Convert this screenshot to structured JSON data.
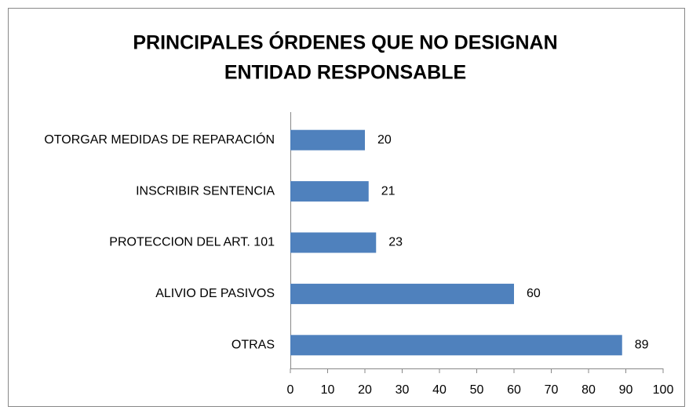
{
  "chart_data": {
    "type": "bar",
    "orientation": "horizontal",
    "title": [
      "PRINCIPALES ÓRDENES QUE NO DESIGNAN",
      "ENTIDAD RESPONSABLE"
    ],
    "categories": [
      "OTORGAR MEDIDAS DE REPARACIÓN",
      "INSCRIBIR SENTENCIA",
      "PROTECCION DEL ART. 101",
      "ALIVIO DE PASIVOS",
      "OTRAS"
    ],
    "values": [
      20,
      21,
      23,
      60,
      89
    ],
    "color": "#4f81bd",
    "xlim": [
      0,
      100
    ],
    "xticks": [
      0,
      10,
      20,
      30,
      40,
      50,
      60,
      70,
      80,
      90,
      100
    ],
    "grid": false
  }
}
